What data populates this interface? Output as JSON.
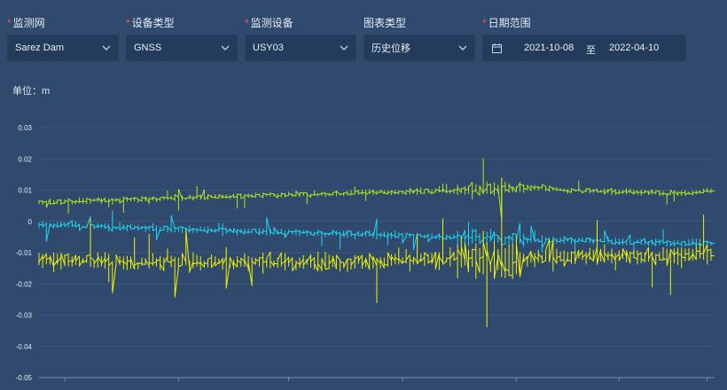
{
  "filters": [
    {
      "label": "监测网",
      "required": true,
      "value": "Sarez Dam"
    },
    {
      "label": "设备类型",
      "required": true,
      "value": "GNSS"
    },
    {
      "label": "监测设备",
      "required": true,
      "value": "USY03"
    },
    {
      "label": "图表类型",
      "required": false,
      "value": "历史位移"
    }
  ],
  "date_range": {
    "label": "日期范围",
    "required": true,
    "start": "2021-10-08",
    "separator": "至",
    "end": "2022-04-10"
  },
  "unit_label": "单位：m",
  "colors": {
    "background": "#2f4a6d",
    "grid": "#4a6387",
    "series_green": "#b6e51c",
    "series_cyan": "#22d6f2",
    "series_yellow": "#f2f200"
  },
  "chart_data": {
    "type": "line",
    "title": "",
    "xlabel": "",
    "ylabel": "单位：m",
    "ylim": [
      -0.05,
      0.03
    ],
    "yticks": [
      0.03,
      0.02,
      0.01,
      0,
      -0.01,
      -0.02,
      -0.03,
      -0.04,
      -0.05
    ],
    "xlim": [
      "2021-10-08",
      "2022-04-10"
    ],
    "grid": true,
    "legend": "none",
    "series": [
      {
        "color": "#b6e51c",
        "x": [
          "2021-10-08",
          "2021-11-01",
          "2021-12-01",
          "2022-01-01",
          "2022-02-01",
          "2022-02-20",
          "2022-03-01",
          "2022-04-01",
          "2022-04-10"
        ],
        "values": [
          0.006,
          0.007,
          0.008,
          0.009,
          0.01,
          0.011,
          0.01,
          0.009,
          0.01
        ]
      },
      {
        "color": "#22d6f2",
        "x": [
          "2021-10-08",
          "2021-11-01",
          "2021-12-01",
          "2022-01-01",
          "2022-02-01",
          "2022-02-20",
          "2022-03-01",
          "2022-04-01",
          "2022-04-10"
        ],
        "values": [
          -0.001,
          -0.002,
          -0.003,
          -0.004,
          -0.005,
          -0.006,
          -0.006,
          -0.007,
          -0.007
        ]
      },
      {
        "color": "#f2f200",
        "x": [
          "2021-10-08",
          "2021-11-01",
          "2021-12-01",
          "2022-01-01",
          "2022-02-01",
          "2022-02-20",
          "2022-03-01",
          "2022-04-01",
          "2022-04-10"
        ],
        "values": [
          -0.012,
          -0.013,
          -0.013,
          -0.013,
          -0.012,
          -0.012,
          -0.011,
          -0.011,
          -0.01
        ]
      }
    ]
  }
}
